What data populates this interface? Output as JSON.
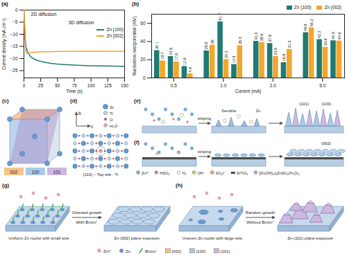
{
  "chart_data": [
    {
      "type": "line",
      "title": "(a)",
      "x_label": "Time (s)",
      "y_label": "Current density (mA cm⁻²)",
      "annotations": [
        "2D diffusion",
        "3D diffusion"
      ],
      "x": [
        0,
        1,
        2,
        3,
        5,
        8,
        10,
        15,
        20,
        30,
        40,
        50,
        60,
        80,
        100,
        120,
        150
      ],
      "series": [
        {
          "name": "Zn (100)",
          "color": "#1f7a73",
          "values": [
            0,
            -6,
            -12,
            -15,
            -17,
            -18.5,
            -19.3,
            -20.2,
            -20.8,
            -21.5,
            -22,
            -22.3,
            -22.5,
            -22.8,
            -23,
            -23.1,
            -23.2
          ]
        },
        {
          "name": "Zn (002)",
          "color": "#f4a62a",
          "values": [
            0,
            -8,
            -14,
            -17,
            -18,
            -17.8,
            -17.6,
            -17.4,
            -17.3,
            -17.2,
            -17.2,
            -17.1,
            -17.1,
            -17,
            -17,
            -17,
            -17
          ]
        }
      ],
      "xlim": [
        0,
        150
      ],
      "xticks": [
        0,
        25,
        50,
        75,
        100,
        125,
        150
      ],
      "ylim": [
        -28,
        0
      ],
      "yticks": [
        -25,
        -20,
        -15,
        -10,
        -5,
        0
      ],
      "legend": "upper right",
      "grid": false
    },
    {
      "type": "bar",
      "title": "(b)",
      "x_label": "Current (mA)",
      "y_label": "Nucleation overpotential (mV)",
      "categories": [
        null,
        "0.5",
        null,
        null,
        "1.0",
        null,
        null,
        "2.0",
        null,
        null,
        "5.0",
        null
      ],
      "series": [
        {
          "name": "Zn (100)",
          "color": "#1f7a73",
          "values": [
            30.1,
            23.6,
            12.6,
            29.8,
            61.7,
            14.8,
            40.3,
            37.9,
            16.8,
            49.8,
            42.2,
            40.9
          ]
        },
        {
          "name": "Zn (002)",
          "color": "#f4a62a",
          "values": [
            18.7,
            17.6,
            4.6,
            36,
            20.2,
            35.3,
            38.9,
            23.6,
            31.3,
            55.2,
            33.8,
            40.6
          ]
        }
      ],
      "ylim": [
        0,
        70
      ],
      "yticks": [
        0,
        20,
        40,
        60
      ],
      "data_labels": true,
      "legend": "upper right",
      "grid": false
    }
  ],
  "diagrams": {
    "c": {
      "label": "(c)",
      "planes": [
        "002",
        "100",
        "101"
      ]
    },
    "d": {
      "label": "(d)",
      "axes": [
        "b",
        "c"
      ],
      "atoms": [
        "Sr",
        "Ti",
        "O",
        "H₂O"
      ],
      "caption": "(110) – Top site - Ti"
    },
    "e": {
      "label": "(e)",
      "step": "striping",
      "notes": [
        "Dendrite",
        "Zn"
      ],
      "facets": [
        "(101)",
        "(100)"
      ]
    },
    "f": {
      "label": "(f)",
      "step": "striping",
      "facets": [
        "(002)"
      ]
    },
    "species": [
      "Zn²⁺",
      "HSO₄⁻",
      "H₂",
      "OH⁻",
      "SO₄²⁻",
      "SrTiO₃",
      "[Zn(OH)₂]₃ZnSO₄(H₂O)₅"
    ],
    "g": {
      "label": "(g)",
      "start": "Uniform Zn nuclei with small size",
      "arrow_top": "Oriented growth",
      "arrow_bottom": "With Bmim⁺",
      "end": "Zn-(002) plane exposure"
    },
    "h": {
      "label": "(h)",
      "start": "Uneven Zn nuclei with large size",
      "arrow_top": "Random growth",
      "arrow_bottom": "Without Bmim⁺",
      "end": "Zn-(101) plane exposure"
    },
    "gh_legend": [
      "Zn²⁺",
      "Zn",
      "Bmim⁺",
      "(002)",
      "(100)",
      "(101)"
    ]
  }
}
